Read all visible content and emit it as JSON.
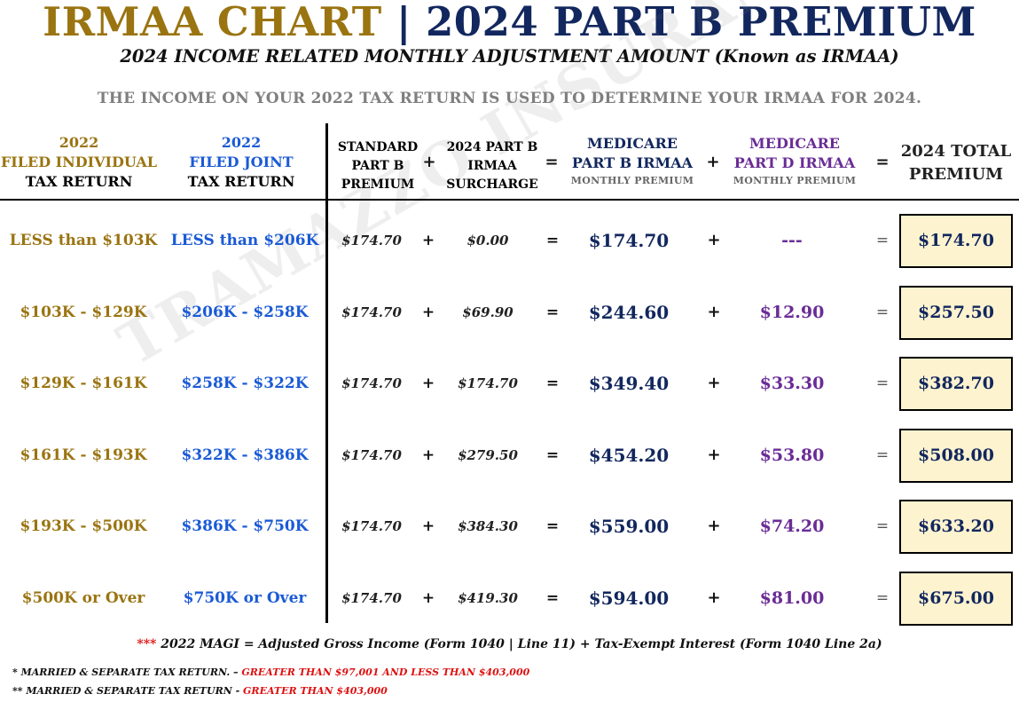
{
  "title": {
    "left": "IRMAA CHART",
    "separator": "|",
    "right": "2024 PART B PREMIUM"
  },
  "subtitle": "2024 INCOME RELATED MONTHLY ADJUSTMENT AMOUNT (Known as IRMAA)",
  "note": "THE INCOME ON YOUR 2022 TAX RETURN IS USED TO DETERMINE YOUR IRMAA FOR 2024.",
  "watermark": "TRAMAZZO INSURANCE",
  "headers": {
    "individual": {
      "year": "2022",
      "line2": "FILED INDIVIDUAL",
      "line3": "TAX RETURN"
    },
    "joint": {
      "year": "2022",
      "line2": "FILED JOINT",
      "line3": "TAX RETURN"
    },
    "standard": {
      "line1": "STANDARD",
      "line2": "PART B",
      "line3": "PREMIUM"
    },
    "surcharge": {
      "line1": "2024 PART B",
      "line2": "IRMAA",
      "line3": "SURCHARGE"
    },
    "part_b": {
      "line1": "MEDICARE",
      "line2": "PART B IRMAA",
      "line3": "MONTHLY PREMIUM"
    },
    "part_d": {
      "line1": "MEDICARE",
      "line2": "PART D IRMAA",
      "line3": "MONTHLY PREMIUM"
    },
    "total": {
      "line1": "2024 TOTAL",
      "line2": "PREMIUM"
    },
    "ops": {
      "plus": "+",
      "equals": "="
    }
  },
  "colors": {
    "gold": "#9a7411",
    "navy": "#12275e",
    "blue": "#1a5ad6",
    "purple": "#6a2c96",
    "red": "#dd1111",
    "total_bg": "#fdf3cf"
  },
  "rows": [
    {
      "individual": "LESS than $103K",
      "joint": "LESS than $206K",
      "standard": "$174.70",
      "plus1": "+",
      "surcharge": "$0.00",
      "eq1": "=",
      "part_b": "$174.70",
      "plus2": "+",
      "part_d": "---",
      "eq2": "=",
      "total": "$174.70"
    },
    {
      "individual": "$103K - $129K",
      "joint": "$206K - $258K",
      "standard": "$174.70",
      "plus1": "+",
      "surcharge": "$69.90",
      "eq1": "=",
      "part_b": "$244.60",
      "plus2": "+",
      "part_d": "$12.90",
      "eq2": "=",
      "total": "$257.50"
    },
    {
      "individual": "$129K - $161K",
      "joint": "$258K - $322K",
      "standard": "$174.70",
      "plus1": "+",
      "surcharge": "$174.70",
      "eq1": "=",
      "part_b": "$349.40",
      "plus2": "+",
      "part_d": "$33.30",
      "eq2": "=",
      "total": "$382.70"
    },
    {
      "individual": "$161K - $193K",
      "joint": "$322K - $386K",
      "standard": "$174.70",
      "plus1": "+",
      "surcharge": "$279.50",
      "eq1": "=",
      "part_b": "$454.20",
      "plus2": "+",
      "part_d": "$53.80",
      "eq2": "=",
      "total": "$508.00"
    },
    {
      "individual": "$193K - $500K",
      "joint": "$386K - $750K",
      "standard": "$174.70",
      "plus1": "+",
      "surcharge": "$384.30",
      "eq1": "=",
      "part_b": "$559.00",
      "plus2": "+",
      "part_d": "$74.20",
      "eq2": "=",
      "total": "$633.20"
    },
    {
      "individual": "$500K or Over",
      "joint": "$750K or Over",
      "standard": "$174.70",
      "plus1": "+",
      "surcharge": "$419.30",
      "eq1": "=",
      "part_b": "$594.00",
      "plus2": "+",
      "part_d": "$81.00",
      "eq2": "=",
      "total": "$675.00"
    }
  ],
  "footnotes": {
    "magi_mark": "***",
    "magi": "2022 MAGI = Adjusted Gross Income (Form 1040 | Line 11) + Tax-Exempt Interest (Form 1040 Line 2a)",
    "sep1_label": "* MARRIED & SEPARATE TAX RETURN. –",
    "sep1_value": "GREATER THAN $97,001 AND LESS THAN $403,000",
    "sep2_label": "** MARRIED & SEPARATE TAX RETURN -",
    "sep2_value": "GREATER THAN $403,000"
  }
}
